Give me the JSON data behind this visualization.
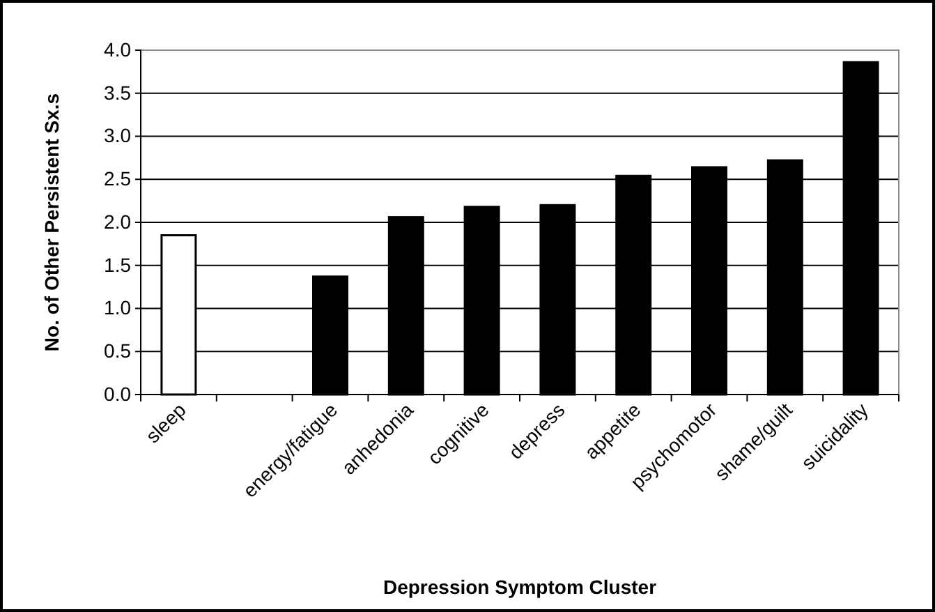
{
  "chart_data": {
    "type": "bar",
    "xlabel": "Depression Symptom Cluster",
    "ylabel": "No. of Other Persistent Sx.s",
    "categories": [
      "sleep",
      null,
      "energy/fatigue",
      "anhedonia",
      "cognitive",
      "depress",
      "appetite",
      "psychomotor",
      "shame/guilt",
      "suicidality"
    ],
    "values": [
      1.85,
      null,
      1.37,
      2.06,
      2.18,
      2.2,
      2.54,
      2.64,
      2.72,
      3.86
    ],
    "colors": [
      "#ffffff",
      null,
      "#000000",
      "#000000",
      "#000000",
      "#000000",
      "#000000",
      "#000000",
      "#000000",
      "#000000"
    ],
    "ylim": [
      0,
      4
    ],
    "yticks": [
      {
        "value": 0,
        "label": "0.0"
      },
      {
        "value": 0.5,
        "label": "0.5"
      },
      {
        "value": 1,
        "label": "1.0"
      },
      {
        "value": 1.5,
        "label": "1.5"
      },
      {
        "value": 2,
        "label": "2.0"
      },
      {
        "value": 2.5,
        "label": "2.5"
      },
      {
        "value": 3,
        "label": "3.0"
      },
      {
        "value": 3.5,
        "label": "3.5"
      },
      {
        "value": 4,
        "label": "4.0"
      }
    ],
    "grid": "y"
  }
}
